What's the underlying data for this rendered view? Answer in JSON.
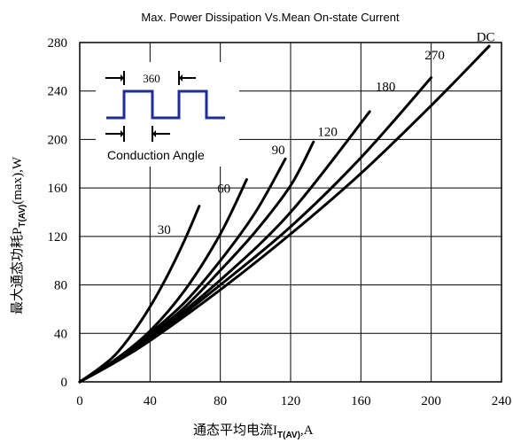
{
  "chart_data": {
    "type": "line",
    "title": "Max. Power Dissipation Vs.Mean On-state Current",
    "xlabel_main": "通态平均电流I",
    "xlabel_sub": "T(AV)",
    "xlabel_unit": ",A",
    "ylabel_main": "最大通态功耗P",
    "ylabel_sub": "T(AV)",
    "ylabel_unit": "(max),W",
    "xlim": [
      0,
      240
    ],
    "ylim": [
      0,
      280
    ],
    "xticks": [
      "0",
      "40",
      "80",
      "120",
      "160",
      "200",
      "240"
    ],
    "yticks": [
      "0",
      "40",
      "80",
      "120",
      "160",
      "200",
      "240",
      "280"
    ],
    "grid": true,
    "series": [
      {
        "name": "30",
        "x": [
          0,
          10,
          20,
          30,
          40,
          50,
          60,
          68
        ],
        "y": [
          0,
          10,
          22,
          40,
          62,
          88,
          118,
          145
        ]
      },
      {
        "name": "60",
        "x": [
          0,
          20,
          40,
          60,
          80,
          95
        ],
        "y": [
          0,
          18,
          42,
          76,
          122,
          167
        ]
      },
      {
        "name": "90",
        "x": [
          0,
          20,
          40,
          60,
          80,
          100,
          117
        ],
        "y": [
          0,
          18,
          40,
          66,
          100,
          140,
          184
        ]
      },
      {
        "name": "120",
        "x": [
          0,
          20,
          40,
          60,
          80,
          100,
          120,
          133
        ],
        "y": [
          0,
          17,
          38,
          62,
          92,
          124,
          162,
          198
        ]
      },
      {
        "name": "180",
        "x": [
          0,
          20,
          40,
          80,
          120,
          165
        ],
        "y": [
          0,
          17,
          36,
          84,
          140,
          223
        ]
      },
      {
        "name": "270",
        "x": [
          0,
          20,
          40,
          80,
          120,
          160,
          200
        ],
        "y": [
          0,
          17,
          35,
          80,
          128,
          185,
          251
        ]
      },
      {
        "name": "DC",
        "x": [
          0,
          20,
          40,
          80,
          120,
          160,
          200,
          233
        ],
        "y": [
          0,
          16,
          34,
          76,
          122,
          172,
          228,
          277
        ]
      }
    ],
    "series_label_positions": [
      {
        "name": "30",
        "x": 48,
        "y": 122
      },
      {
        "name": "60",
        "x": 82,
        "y": 156
      },
      {
        "name": "90",
        "x": 113,
        "y": 188
      },
      {
        "name": "120",
        "x": 141,
        "y": 203
      },
      {
        "name": "180",
        "x": 174,
        "y": 240
      },
      {
        "name": "270",
        "x": 202,
        "y": 266
      },
      {
        "name": "DC",
        "x": 231,
        "y": 281
      }
    ],
    "inset": {
      "period_label": "360",
      "caption": "Conduction Angle"
    }
  }
}
